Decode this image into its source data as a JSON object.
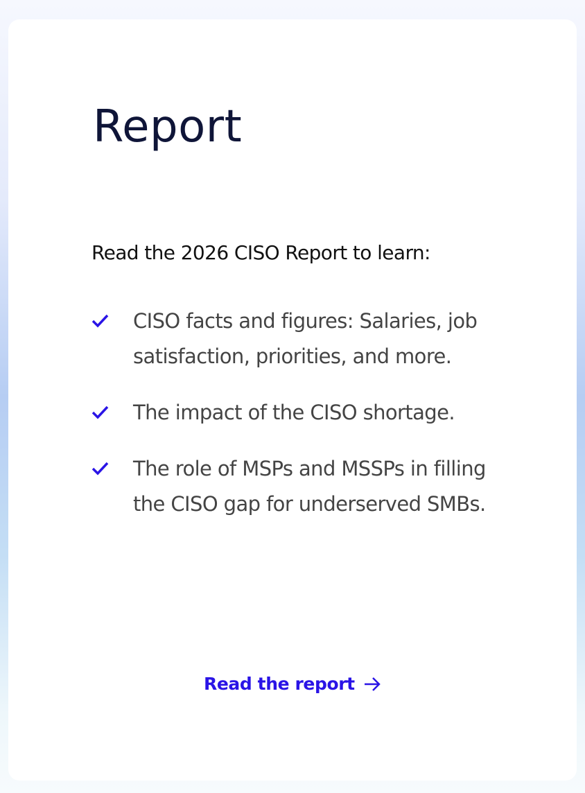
{
  "card": {
    "title": "Report",
    "intro": "Read the 2026 CISO Report to learn:",
    "items": [
      "CISO facts and figures: Salaries, job satisfaction, priorities, and more.",
      "The impact of the CISO shortage.",
      "The role of MSPs and MSSPs in filling the CISO gap for underserved SMBs."
    ],
    "link": "Read the report"
  }
}
